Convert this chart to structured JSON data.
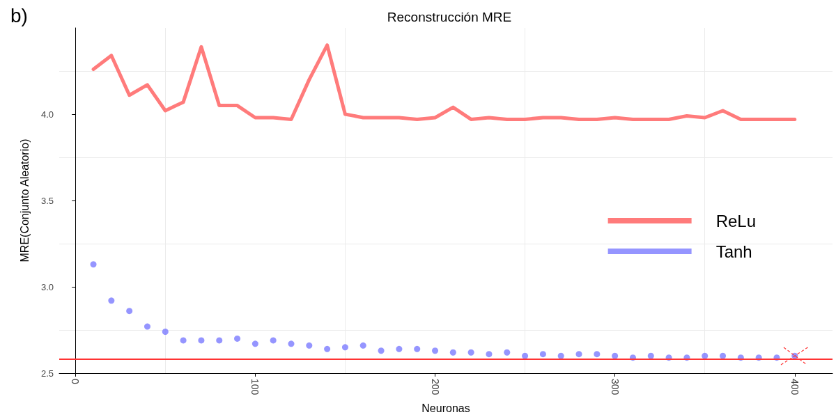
{
  "chart_data": {
    "type": "line",
    "title": "Reconstrucción MRE",
    "xlabel": "Neuronas",
    "ylabel": "MRE(Conjunto Aleatorio)",
    "annotations": [
      "b)"
    ],
    "x": [
      10,
      20,
      30,
      40,
      50,
      60,
      70,
      80,
      90,
      100,
      110,
      120,
      130,
      140,
      150,
      160,
      170,
      180,
      190,
      200,
      210,
      220,
      230,
      240,
      250,
      260,
      270,
      280,
      290,
      300,
      310,
      320,
      330,
      340,
      350,
      360,
      370,
      380,
      390,
      400
    ],
    "series": [
      {
        "name": "ReLu",
        "type": "line",
        "color": "#ff7b7b",
        "marker": "none",
        "line_style": "solid",
        "values": [
          4.26,
          4.34,
          4.11,
          4.17,
          4.02,
          4.07,
          4.39,
          4.05,
          4.05,
          3.98,
          3.98,
          3.97,
          4.2,
          4.4,
          4.0,
          3.98,
          3.98,
          3.98,
          3.97,
          3.98,
          4.04,
          3.97,
          3.98,
          3.97,
          3.97,
          3.98,
          3.98,
          3.97,
          3.97,
          3.98,
          3.97,
          3.97,
          3.97,
          3.99,
          3.98,
          4.02,
          3.97,
          3.97,
          3.97,
          3.97
        ]
      },
      {
        "name": "Tanh",
        "type": "scatter",
        "color": "#7b7bff",
        "marker": "circle",
        "values": [
          3.13,
          2.92,
          2.86,
          2.77,
          2.74,
          2.69,
          2.69,
          2.69,
          2.7,
          2.67,
          2.69,
          2.67,
          2.66,
          2.64,
          2.65,
          2.66,
          2.63,
          2.64,
          2.64,
          2.63,
          2.62,
          2.62,
          2.61,
          2.62,
          2.6,
          2.61,
          2.6,
          2.61,
          2.61,
          2.6,
          2.59,
          2.6,
          2.59,
          2.59,
          2.6,
          2.6,
          2.59,
          2.59,
          2.59,
          2.6
        ]
      }
    ],
    "ref_lines": [
      {
        "axis": "y",
        "value": 2.58,
        "color": "#ff3333"
      }
    ],
    "xlim": [
      -9,
      421
    ],
    "xticks": [
      0,
      100,
      200,
      300,
      400
    ],
    "ylim": [
      2.5,
      4.5
    ],
    "yticks": [
      2.5,
      {
        "value": 3,
        "label": "3.0"
      },
      3.5,
      {
        "value": 4,
        "label": "4.0"
      }
    ],
    "grid": true,
    "legend": "right"
  }
}
